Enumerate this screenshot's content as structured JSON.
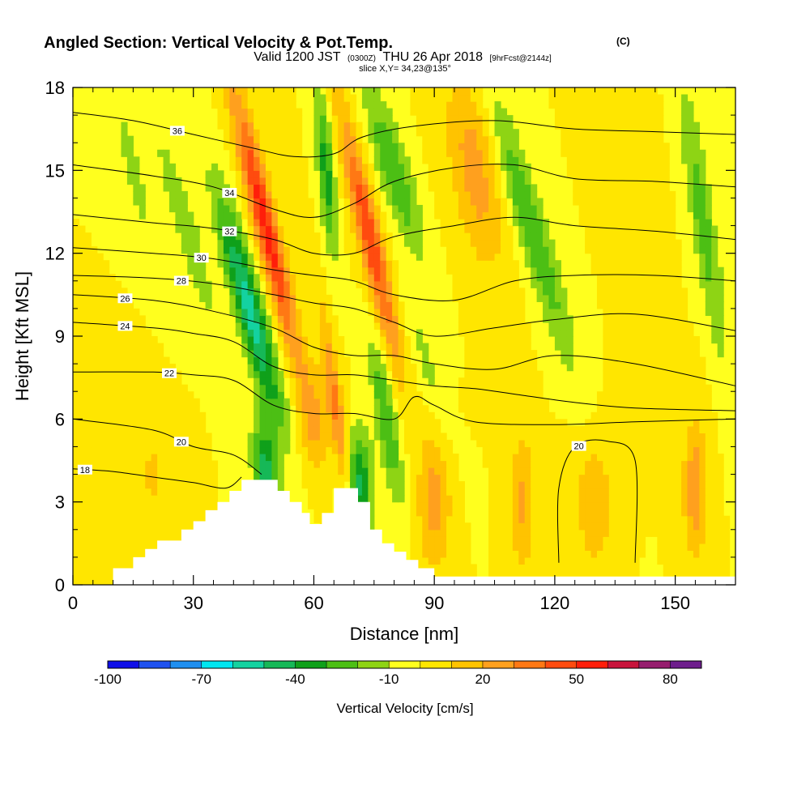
{
  "chart_data": {
    "type": "heatmap",
    "title_main": "Angled Section: Vertical Velocity & Pot.Temp.",
    "title_unit": "(C)",
    "subtitle_valid": "Valid 1200 JST",
    "subtitle_utc": "(0300Z)",
    "subtitle_date": "THU 26 Apr 2018",
    "subtitle_fcst": "[9hrFcst@2144z]",
    "slice_text": "slice X,Y= 34,23@135°",
    "xlabel": "Distance [nm]",
    "ylabel": "Height [Kft MSL]",
    "xlim": [
      0,
      165
    ],
    "ylim": [
      0,
      18
    ],
    "x_ticks": [
      0,
      30,
      60,
      90,
      120,
      150
    ],
    "y_ticks": [
      0,
      3,
      6,
      9,
      12,
      15,
      18
    ],
    "colorbar": {
      "title": "Vertical Velocity [cm/s]",
      "range": [
        -100,
        90
      ],
      "step": 10,
      "tick_labels": [
        "-100",
        "-70",
        "-40",
        "-10",
        "20",
        "50",
        "80"
      ],
      "colors": [
        "#1010e8",
        "#1f52f0",
        "#1f8ff0",
        "#00e6f0",
        "#14d2a0",
        "#16b857",
        "#0fa01a",
        "#4cbf14",
        "#8ed414",
        "#ffff1e",
        "#ffe600",
        "#ffc300",
        "#ffa01e",
        "#ff7814",
        "#ff4b0f",
        "#ff1e0a",
        "#c8143c",
        "#961e6e",
        "#6e1e8c"
      ]
    },
    "terrain_kft": [
      [
        0,
        0
      ],
      [
        10,
        0
      ],
      [
        10,
        0.6
      ],
      [
        15,
        0.6
      ],
      [
        15,
        1
      ],
      [
        18,
        1
      ],
      [
        18,
        1.3
      ],
      [
        21,
        1.3
      ],
      [
        21,
        1.6
      ],
      [
        27,
        1.6
      ],
      [
        27,
        2.0
      ],
      [
        30,
        2.0
      ],
      [
        30,
        2.3
      ],
      [
        33,
        2.3
      ],
      [
        33,
        2.7
      ],
      [
        36,
        2.7
      ],
      [
        36,
        3.0
      ],
      [
        39,
        3.0
      ],
      [
        39,
        3.4
      ],
      [
        42,
        3.4
      ],
      [
        42,
        3.8
      ],
      [
        51,
        3.8
      ],
      [
        51,
        3.4
      ],
      [
        54,
        3.4
      ],
      [
        54,
        3.0
      ],
      [
        57,
        3.0
      ],
      [
        57,
        2.6
      ],
      [
        59,
        2.6
      ],
      [
        59,
        2.2
      ],
      [
        62,
        2.2
      ],
      [
        62,
        2.6
      ],
      [
        65,
        2.6
      ],
      [
        65,
        3.5
      ],
      [
        71,
        3.5
      ],
      [
        71,
        3.0
      ],
      [
        74,
        3.0
      ],
      [
        74,
        2.0
      ],
      [
        77,
        2.0
      ],
      [
        77,
        1.5
      ],
      [
        80,
        1.5
      ],
      [
        80,
        1.2
      ],
      [
        83,
        1.2
      ],
      [
        83,
        0.9
      ],
      [
        86,
        0.9
      ],
      [
        86,
        0.6
      ],
      [
        90,
        0.6
      ],
      [
        90,
        0.3
      ],
      [
        165,
        0.3
      ],
      [
        165,
        0
      ]
    ],
    "velocity_features": [
      {
        "x": 48,
        "y": 13,
        "sx": 3.0,
        "sy": 5.0,
        "slope": -1.6,
        "w": 55
      },
      {
        "x": 74,
        "y": 12.5,
        "sx": 3.0,
        "sy": 4.5,
        "slope": -1.5,
        "w": 48
      },
      {
        "x": 66,
        "y": 6,
        "sx": 2.0,
        "sy": 4.0,
        "slope": -1.0,
        "w": 32
      },
      {
        "x": 44,
        "y": 10,
        "sx": 3.5,
        "sy": 4.0,
        "slope": -1.8,
        "w": -55
      },
      {
        "x": 48,
        "y": 4,
        "sx": 3.0,
        "sy": 2.0,
        "slope": -0.5,
        "w": -45
      },
      {
        "x": 63,
        "y": 15,
        "sx": 2.0,
        "sy": 3.0,
        "slope": -0.5,
        "w": -35
      },
      {
        "x": 71,
        "y": 3.5,
        "sx": 3.5,
        "sy": 2.0,
        "slope": 0,
        "w": -45
      },
      {
        "x": 78,
        "y": 6,
        "sx": 2.5,
        "sy": 3.0,
        "slope": -1.0,
        "w": -30
      },
      {
        "x": 80,
        "y": 15,
        "sx": 4.0,
        "sy": 3.0,
        "slope": -2.0,
        "w": -30
      },
      {
        "x": 88,
        "y": 8,
        "sx": 3.0,
        "sy": 3.0,
        "slope": -1.8,
        "w": -12
      },
      {
        "x": 100,
        "y": 15,
        "sx": 6.0,
        "sy": 3.5,
        "slope": -1.0,
        "w": 25
      },
      {
        "x": 114,
        "y": 13,
        "sx": 4.0,
        "sy": 5.0,
        "slope": -2.0,
        "w": -30
      },
      {
        "x": 157,
        "y": 13,
        "sx": 3.0,
        "sy": 5.0,
        "slope": -1.0,
        "w": -25
      },
      {
        "x": 28,
        "y": 13,
        "sx": 3.0,
        "sy": 3.5,
        "slope": -2.0,
        "w": -20
      },
      {
        "x": 15,
        "y": 15,
        "sx": 2.5,
        "sy": 3.0,
        "slope": -1.5,
        "w": -15
      },
      {
        "x": 90,
        "y": 3,
        "sx": 4.0,
        "sy": 2.5,
        "slope": 0,
        "w": 25
      },
      {
        "x": 112,
        "y": 3,
        "sx": 3.0,
        "sy": 2.5,
        "slope": 0,
        "w": 22
      },
      {
        "x": 130,
        "y": 3,
        "sx": 5.0,
        "sy": 2.5,
        "slope": 0,
        "w": 18
      },
      {
        "x": 155,
        "y": 3.5,
        "sx": 3.0,
        "sy": 2.5,
        "slope": 0,
        "w": 28
      },
      {
        "x": 60,
        "y": 6,
        "sx": 4.0,
        "sy": 2.0,
        "slope": 0,
        "w": 18
      },
      {
        "x": 20,
        "y": 4,
        "sx": 4.0,
        "sy": 2.0,
        "slope": 0,
        "w": 12
      },
      {
        "x": 138,
        "y": 16,
        "sx": 5.0,
        "sy": 4.0,
        "slope": -1.0,
        "w": 10
      }
    ],
    "theta_contours": [
      {
        "theta": 18,
        "label": "18",
        "label_x": 3,
        "pts": [
          [
            0,
            4.2
          ],
          [
            10,
            4.1
          ],
          [
            20,
            3.9
          ],
          [
            30,
            3.7
          ],
          [
            38,
            3.5
          ],
          [
            42,
            3.9
          ]
        ]
      },
      {
        "theta": 20,
        "label": "20",
        "label_x": 27,
        "pts": [
          [
            0,
            6.0
          ],
          [
            20,
            5.6
          ],
          [
            30,
            5.0
          ],
          [
            40,
            4.7
          ],
          [
            47,
            4.0
          ]
        ]
      },
      {
        "theta": 20,
        "label": "20",
        "label_x": 126,
        "pts": [
          [
            121,
            0.8
          ],
          [
            121,
            3.5
          ],
          [
            125,
            5.0
          ],
          [
            133,
            5.2
          ],
          [
            140,
            4.5
          ],
          [
            140,
            0.8
          ]
        ]
      },
      {
        "theta": 22,
        "label": "22",
        "label_x": 24,
        "pts": [
          [
            0,
            7.7
          ],
          [
            20,
            7.7
          ],
          [
            30,
            7.6
          ],
          [
            40,
            7.4
          ],
          [
            50,
            6.5
          ],
          [
            60,
            6.2
          ],
          [
            70,
            6.2
          ],
          [
            80,
            6.0
          ],
          [
            85,
            6.8
          ],
          [
            90,
            6.5
          ],
          [
            100,
            5.9
          ],
          [
            120,
            5.8
          ],
          [
            140,
            5.9
          ],
          [
            165,
            6.0
          ]
        ]
      },
      {
        "theta": 24,
        "label": "24",
        "label_x": 13,
        "pts": [
          [
            0,
            9.5
          ],
          [
            20,
            9.3
          ],
          [
            30,
            9.1
          ],
          [
            40,
            8.8
          ],
          [
            50,
            7.9
          ],
          [
            60,
            7.6
          ],
          [
            70,
            7.6
          ],
          [
            80,
            7.4
          ],
          [
            90,
            7.2
          ],
          [
            100,
            7.1
          ],
          [
            110,
            6.9
          ],
          [
            125,
            6.6
          ],
          [
            140,
            6.4
          ],
          [
            165,
            6.3
          ]
        ]
      },
      {
        "theta": 26,
        "label": "26",
        "label_x": 13,
        "pts": [
          [
            0,
            10.5
          ],
          [
            20,
            10.3
          ],
          [
            35,
            9.9
          ],
          [
            50,
            9.3
          ],
          [
            60,
            8.6
          ],
          [
            70,
            8.3
          ],
          [
            80,
            8.3
          ],
          [
            90,
            8.0
          ],
          [
            105,
            7.8
          ],
          [
            120,
            8.3
          ],
          [
            140,
            8.0
          ],
          [
            165,
            7.2
          ]
        ]
      },
      {
        "theta": 28,
        "label": "28",
        "label_x": 27,
        "pts": [
          [
            0,
            11.2
          ],
          [
            20,
            11.1
          ],
          [
            35,
            10.9
          ],
          [
            50,
            10.5
          ],
          [
            60,
            10.2
          ],
          [
            70,
            10.0
          ],
          [
            80,
            9.5
          ],
          [
            90,
            9.0
          ],
          [
            105,
            9.3
          ],
          [
            120,
            9.6
          ],
          [
            140,
            9.8
          ],
          [
            165,
            9.2
          ]
        ]
      },
      {
        "theta": 30,
        "label": "30",
        "label_x": 32,
        "pts": [
          [
            0,
            12.2
          ],
          [
            20,
            12.0
          ],
          [
            35,
            11.8
          ],
          [
            50,
            11.4
          ],
          [
            60,
            11.2
          ],
          [
            70,
            11.0
          ],
          [
            80,
            10.5
          ],
          [
            95,
            10.3
          ],
          [
            110,
            11.0
          ],
          [
            125,
            11.2
          ],
          [
            145,
            11.2
          ],
          [
            165,
            11.0
          ]
        ]
      },
      {
        "theta": 32,
        "label": "32",
        "label_x": 39,
        "pts": [
          [
            0,
            13.4
          ],
          [
            20,
            13.1
          ],
          [
            35,
            12.9
          ],
          [
            50,
            12.5
          ],
          [
            60,
            12.0
          ],
          [
            70,
            12.0
          ],
          [
            80,
            12.6
          ],
          [
            95,
            13.0
          ],
          [
            110,
            13.3
          ],
          [
            125,
            13.0
          ],
          [
            145,
            12.8
          ],
          [
            165,
            12.5
          ]
        ]
      },
      {
        "theta": 34,
        "label": "34",
        "label_x": 39,
        "pts": [
          [
            0,
            15.2
          ],
          [
            20,
            14.8
          ],
          [
            35,
            14.4
          ],
          [
            50,
            13.6
          ],
          [
            60,
            13.3
          ],
          [
            70,
            13.8
          ],
          [
            80,
            14.6
          ],
          [
            95,
            15.1
          ],
          [
            110,
            15.2
          ],
          [
            125,
            14.7
          ],
          [
            145,
            14.6
          ],
          [
            165,
            14.4
          ]
        ]
      },
      {
        "theta": 36,
        "label": "36",
        "label_x": 26,
        "pts": [
          [
            0,
            17.1
          ],
          [
            15,
            16.8
          ],
          [
            30,
            16.3
          ],
          [
            45,
            15.8
          ],
          [
            55,
            15.5
          ],
          [
            65,
            15.6
          ],
          [
            72,
            16.2
          ],
          [
            85,
            16.6
          ],
          [
            105,
            16.8
          ],
          [
            125,
            16.5
          ],
          [
            145,
            16.4
          ],
          [
            165,
            16.3
          ]
        ]
      }
    ]
  }
}
